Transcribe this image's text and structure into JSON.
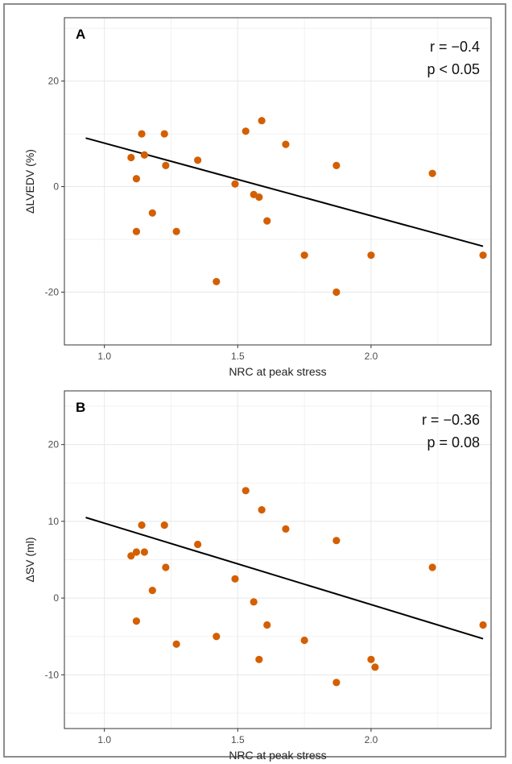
{
  "colors": {
    "point": "#d45f00",
    "line": "#000000",
    "grid": "#e8e8e8",
    "panel_border": "#333333"
  },
  "chart_data": [
    {
      "type": "scatter",
      "panel_label": "A",
      "stat_r": "r = −0.4",
      "stat_p": "p < 0.05",
      "xlabel": "NRC at peak stress",
      "ylabel": "ΔLVEDV (%)",
      "xlim": [
        0.85,
        2.45
      ],
      "ylim": [
        -30,
        32
      ],
      "xticks": [
        1.0,
        1.5,
        2.0
      ],
      "xtick_labels": [
        "1.0",
        "1.5",
        "2.0"
      ],
      "yticks": [
        -20,
        0,
        20
      ],
      "ytick_labels": [
        "-20",
        "0",
        "20"
      ],
      "grid": true,
      "points": [
        {
          "x": 1.1,
          "y": 5.5
        },
        {
          "x": 1.12,
          "y": 1.5
        },
        {
          "x": 1.12,
          "y": -8.5
        },
        {
          "x": 1.14,
          "y": 10
        },
        {
          "x": 1.15,
          "y": 6
        },
        {
          "x": 1.18,
          "y": -5
        },
        {
          "x": 1.225,
          "y": 10
        },
        {
          "x": 1.23,
          "y": 4
        },
        {
          "x": 1.27,
          "y": -8.5
        },
        {
          "x": 1.35,
          "y": 5
        },
        {
          "x": 1.42,
          "y": -18
        },
        {
          "x": 1.49,
          "y": 0.5
        },
        {
          "x": 1.53,
          "y": 10.5
        },
        {
          "x": 1.56,
          "y": -1.5
        },
        {
          "x": 1.58,
          "y": -2
        },
        {
          "x": 1.59,
          "y": 12.5
        },
        {
          "x": 1.61,
          "y": -6.5
        },
        {
          "x": 1.68,
          "y": 8
        },
        {
          "x": 1.75,
          "y": -13
        },
        {
          "x": 1.87,
          "y": 4
        },
        {
          "x": 1.87,
          "y": -20
        },
        {
          "x": 2.0,
          "y": -13
        },
        {
          "x": 2.23,
          "y": 2.5
        },
        {
          "x": 2.42,
          "y": -13
        }
      ],
      "fit_line": [
        {
          "x": 0.93,
          "y": 9.2
        },
        {
          "x": 2.42,
          "y": -11.3
        }
      ]
    },
    {
      "type": "scatter",
      "panel_label": "B",
      "stat_r": "r = −0.36",
      "stat_p": "p = 0.08",
      "xlabel": "NRC at peak stress",
      "ylabel": "ΔSV (ml)",
      "xlim": [
        0.85,
        2.45
      ],
      "ylim": [
        -17,
        27
      ],
      "xticks": [
        1.0,
        1.5,
        2.0
      ],
      "xtick_labels": [
        "1.0",
        "1.5",
        "2.0"
      ],
      "yticks": [
        -10,
        0,
        10,
        20
      ],
      "ytick_labels": [
        "-10",
        "0",
        "10",
        "20"
      ],
      "grid": true,
      "points": [
        {
          "x": 1.1,
          "y": 5.5
        },
        {
          "x": 1.12,
          "y": 6
        },
        {
          "x": 1.12,
          "y": -3
        },
        {
          "x": 1.14,
          "y": 9.5
        },
        {
          "x": 1.15,
          "y": 6
        },
        {
          "x": 1.18,
          "y": 1
        },
        {
          "x": 1.225,
          "y": 9.5
        },
        {
          "x": 1.23,
          "y": 4
        },
        {
          "x": 1.27,
          "y": -6
        },
        {
          "x": 1.35,
          "y": 7
        },
        {
          "x": 1.42,
          "y": -5
        },
        {
          "x": 1.49,
          "y": 2.5
        },
        {
          "x": 1.53,
          "y": 14
        },
        {
          "x": 1.56,
          "y": -0.5
        },
        {
          "x": 1.58,
          "y": -8
        },
        {
          "x": 1.59,
          "y": 11.5
        },
        {
          "x": 1.61,
          "y": -3.5
        },
        {
          "x": 1.68,
          "y": 9
        },
        {
          "x": 1.75,
          "y": -5.5
        },
        {
          "x": 1.87,
          "y": 7.5
        },
        {
          "x": 1.87,
          "y": -11
        },
        {
          "x": 2.0,
          "y": -8
        },
        {
          "x": 2.015,
          "y": -9
        },
        {
          "x": 2.23,
          "y": 4
        },
        {
          "x": 2.42,
          "y": -3.5
        }
      ],
      "fit_line": [
        {
          "x": 0.93,
          "y": 10.5
        },
        {
          "x": 2.42,
          "y": -5.3
        }
      ]
    }
  ]
}
